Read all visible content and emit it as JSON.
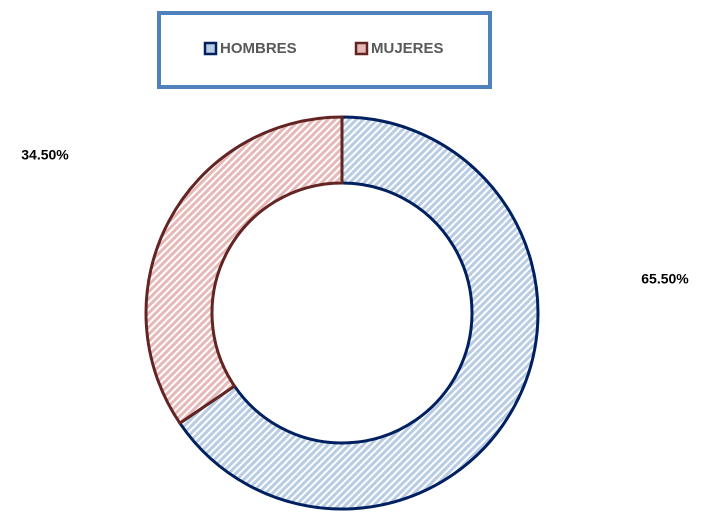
{
  "chart_data": {
    "type": "donut",
    "categories": [
      "HOMBRES",
      "MUJERES"
    ],
    "values": [
      65.5,
      34.5
    ],
    "value_labels": [
      "65.50%",
      "34.50%"
    ],
    "colors": [
      "#b8cce4",
      "#e6b9b8"
    ],
    "edgecolors": [
      "#002060",
      "#632523"
    ],
    "legend": "top"
  }
}
